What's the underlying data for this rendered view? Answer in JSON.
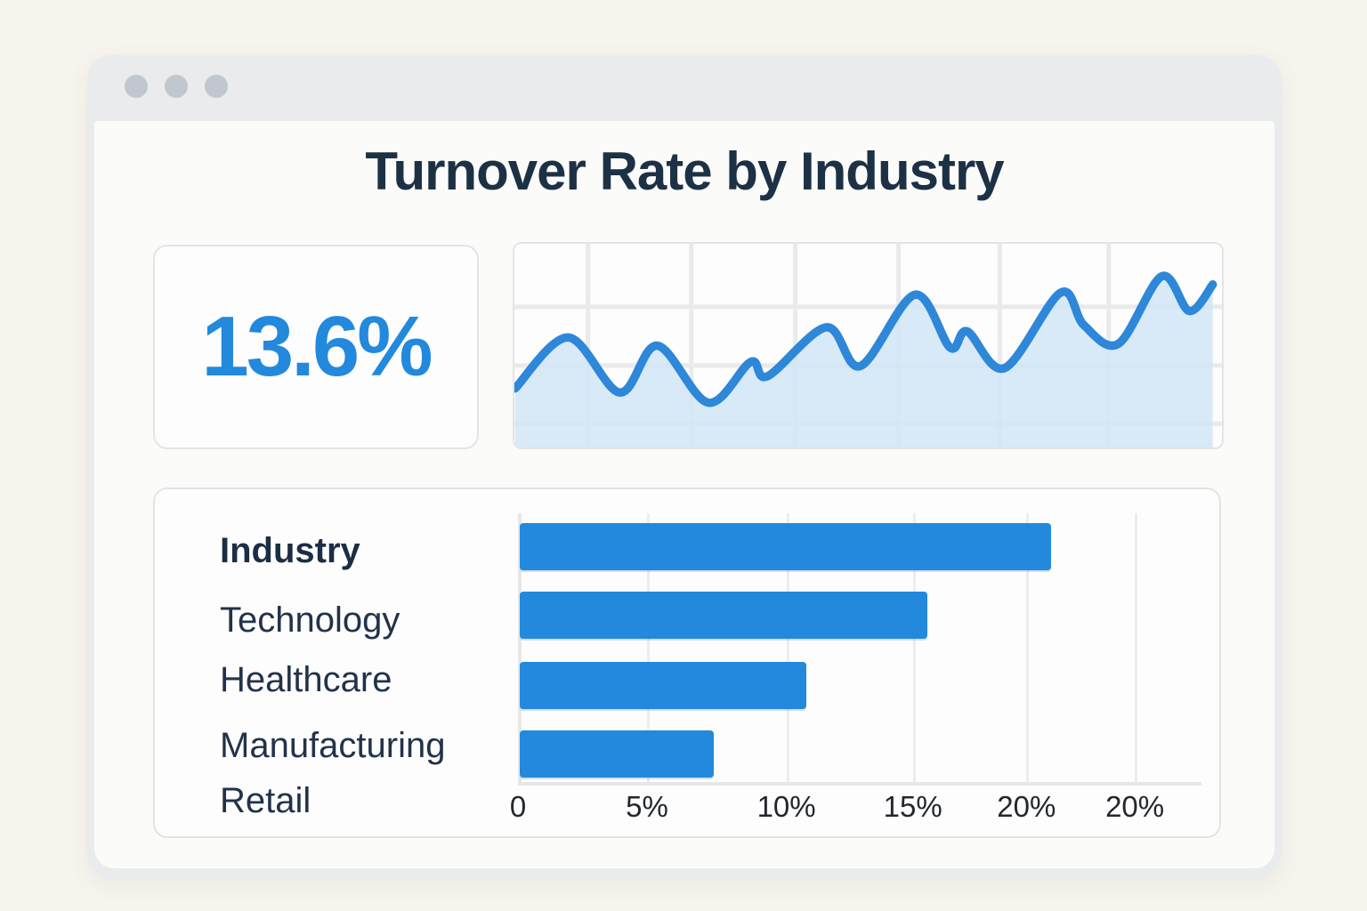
{
  "header": {
    "title": "Turnover Rate by Industry"
  },
  "window": {
    "controls": [
      "close",
      "minimize",
      "maximize"
    ]
  },
  "stat_card": {
    "value": "13.6%"
  },
  "colors": {
    "accent_blue": "#2289dd",
    "line_blue": "#2e87d8",
    "area_fill": "rgba(209,229,246,0.85)",
    "grid_gray": "#e9eaec",
    "title_navy": "#1d3145"
  },
  "chart_data": [
    {
      "type": "line",
      "title": "Turnover rate trend sparkline (no axis labels shown)",
      "x_range": [
        0,
        100
      ],
      "y_range": [
        0,
        100
      ],
      "grid": {
        "v_fractions": [
          0.104,
          0.25,
          0.397,
          0.543,
          0.686,
          0.84
        ],
        "h_fractions": [
          0.309,
          0.597,
          0.884
        ]
      },
      "legend": "none",
      "points": [
        [
          0.1,
          71
        ],
        [
          7.6,
          46
        ],
        [
          14.9,
          73
        ],
        [
          20.2,
          50
        ],
        [
          27.4,
          78
        ],
        [
          33.4,
          58
        ],
        [
          35.8,
          65
        ],
        [
          44.1,
          41
        ],
        [
          48.9,
          60
        ],
        [
          56.6,
          25
        ],
        [
          61.6,
          51
        ],
        [
          64.0,
          43
        ],
        [
          69.3,
          61
        ],
        [
          77.2,
          24
        ],
        [
          80.5,
          40
        ],
        [
          85.4,
          49
        ],
        [
          91.5,
          16
        ],
        [
          95.4,
          33
        ],
        [
          98.7,
          20
        ]
      ]
    },
    {
      "type": "bar",
      "orientation": "horizontal",
      "title": "Turnover rate by industry",
      "rows": [
        {
          "label": "Industry",
          "header": true,
          "value": 20.6
        },
        {
          "label": "Technology",
          "header": false,
          "value": 15.8
        },
        {
          "label": "Healthcare",
          "header": false,
          "value": 11.1
        },
        {
          "label": "Manufacturing",
          "header": false,
          "value": 7.5
        },
        {
          "label": "Retail",
          "header": false,
          "value": null
        }
      ],
      "x_ticks": [
        {
          "label": "0",
          "value": 0
        },
        {
          "label": "5%",
          "value": 5
        },
        {
          "label": "10%",
          "value": 10.4
        },
        {
          "label": "15%",
          "value": 15.3
        },
        {
          "label": "20%",
          "value": 19.7
        },
        {
          "label": "20%",
          "value": 23.9
        }
      ],
      "x_max": 26.5,
      "grid": true,
      "legend": "none"
    }
  ]
}
